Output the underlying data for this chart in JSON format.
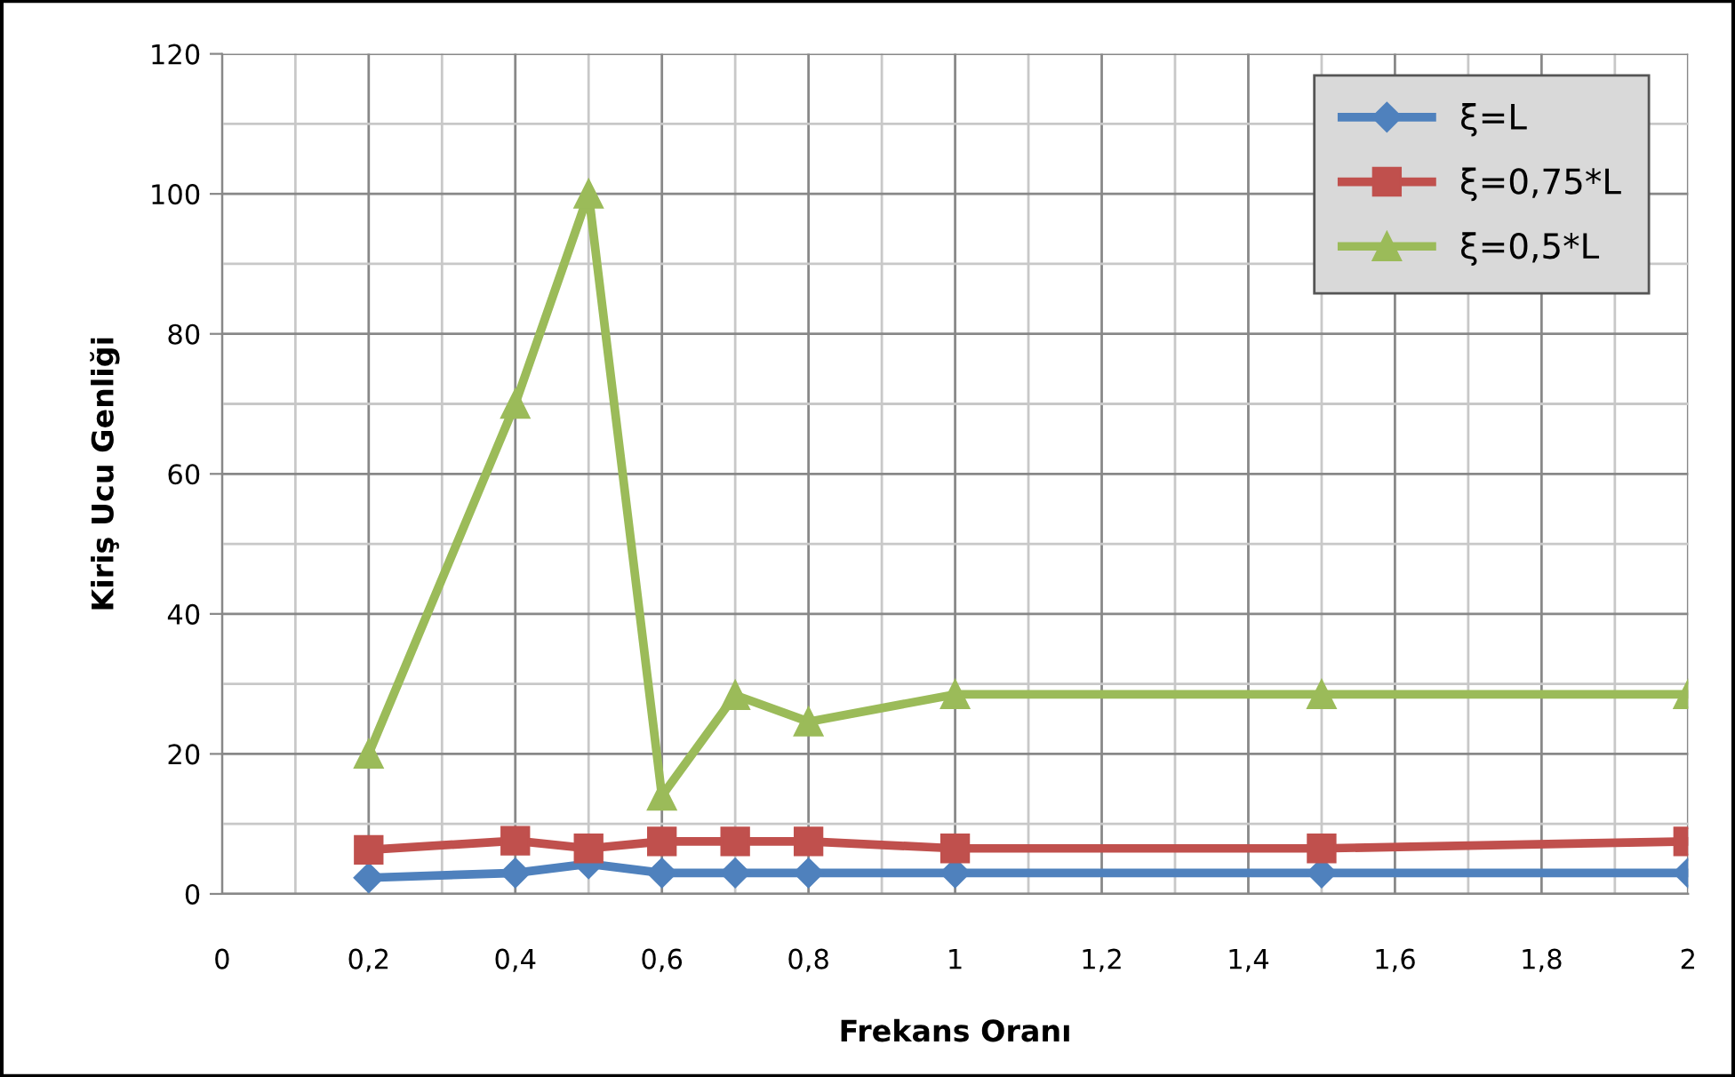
{
  "chart_data": {
    "type": "line",
    "xlabel": "Frekans Oranı",
    "ylabel": "Kiriş Ucu Genliği",
    "x": [
      0.2,
      0.4,
      0.5,
      0.6,
      0.7,
      0.8,
      1,
      1.5,
      2
    ],
    "series": [
      {
        "name": "ξ=L",
        "color": "#4f81bd",
        "marker": "diamond",
        "values": [
          2.3,
          3,
          4.3,
          3,
          3,
          3,
          3,
          3,
          3
        ]
      },
      {
        "name": "ξ=0,75*L",
        "color": "#c0504d",
        "marker": "square",
        "values": [
          6.3,
          7.6,
          6.5,
          7.5,
          7.5,
          7.5,
          6.5,
          6.5,
          7.5
        ]
      },
      {
        "name": "ξ=0,5*L",
        "color": "#9bbb59",
        "marker": "triangle",
        "values": [
          20,
          70,
          100,
          14,
          28.4,
          24.6,
          28.5,
          28.5,
          28.5
        ]
      }
    ],
    "xlim": [
      0,
      2
    ],
    "ylim": [
      0,
      120
    ],
    "xticks": [
      0,
      {
        "value": 0.2,
        "label": "0,2"
      },
      {
        "value": 0.4,
        "label": "0,4"
      },
      {
        "value": 0.6,
        "label": "0,6"
      },
      {
        "value": 0.8,
        "label": "0,8"
      },
      1,
      {
        "value": 1.2,
        "label": "1,2"
      },
      {
        "value": 1.4,
        "label": "1,4"
      },
      {
        "value": 1.6,
        "label": "1,6"
      },
      {
        "value": 1.8,
        "label": "1,8"
      },
      2
    ],
    "yticks": [
      0,
      20,
      40,
      60,
      80,
      100,
      120
    ],
    "grid": true,
    "legend": "top right"
  }
}
